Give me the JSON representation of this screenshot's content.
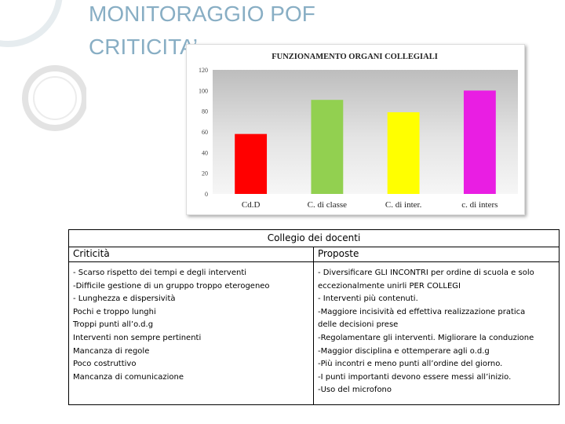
{
  "slide": {
    "title_line1": "MONITORAGGIO POF",
    "title_line2": "CRITICITA’",
    "accent_color": "#88aec4"
  },
  "chart_data": {
    "type": "bar",
    "title": "FUNZIONAMENTO ORGANI COLLEGIALI",
    "categories": [
      "Cd.D",
      "C. di classe",
      "C. di inter.",
      "c. di inters"
    ],
    "values": [
      58,
      91,
      79,
      100
    ],
    "colors": [
      "#ff0000",
      "#92d050",
      "#ffff00",
      "#e91ee3"
    ],
    "ylim": [
      0,
      120
    ],
    "yticks": [
      0,
      20,
      40,
      60,
      80,
      100,
      120
    ],
    "grid": false,
    "xlabel": "",
    "ylabel": ""
  },
  "table": {
    "header": "Collegio dei docenti",
    "left_header": "Criticità",
    "right_header": "Proposte",
    "left_items": [
      "- Scarso rispetto dei tempi e degli interventi",
      "-Difficile gestione di un gruppo troppo eterogeneo",
      "- Lunghezza e dispersività",
      "Pochi e troppo lunghi",
      "Troppi punti all’o.d.g",
      "Interventi non sempre pertinenti",
      "Mancanza di regole",
      "Poco costruttivo",
      "Mancanza di comunicazione"
    ],
    "right_items": [
      "- Diversificare GLI INCONTRI per ordine di scuola e solo eccezionalmente unirli PER COLLEGI",
      "- Interventi più contenuti.",
      "-Maggiore incisività ed effettiva realizzazione pratica delle decisioni prese",
      "-Regolamentare gli interventi. Migliorare la conduzione",
      "-Maggior disciplina e ottemperare agli o.d.g",
      "-Più incontri e meno punti all’ordine del giorno.",
      "-I punti importanti devono essere messi all’inizio.",
      "-Uso del microfono"
    ]
  }
}
